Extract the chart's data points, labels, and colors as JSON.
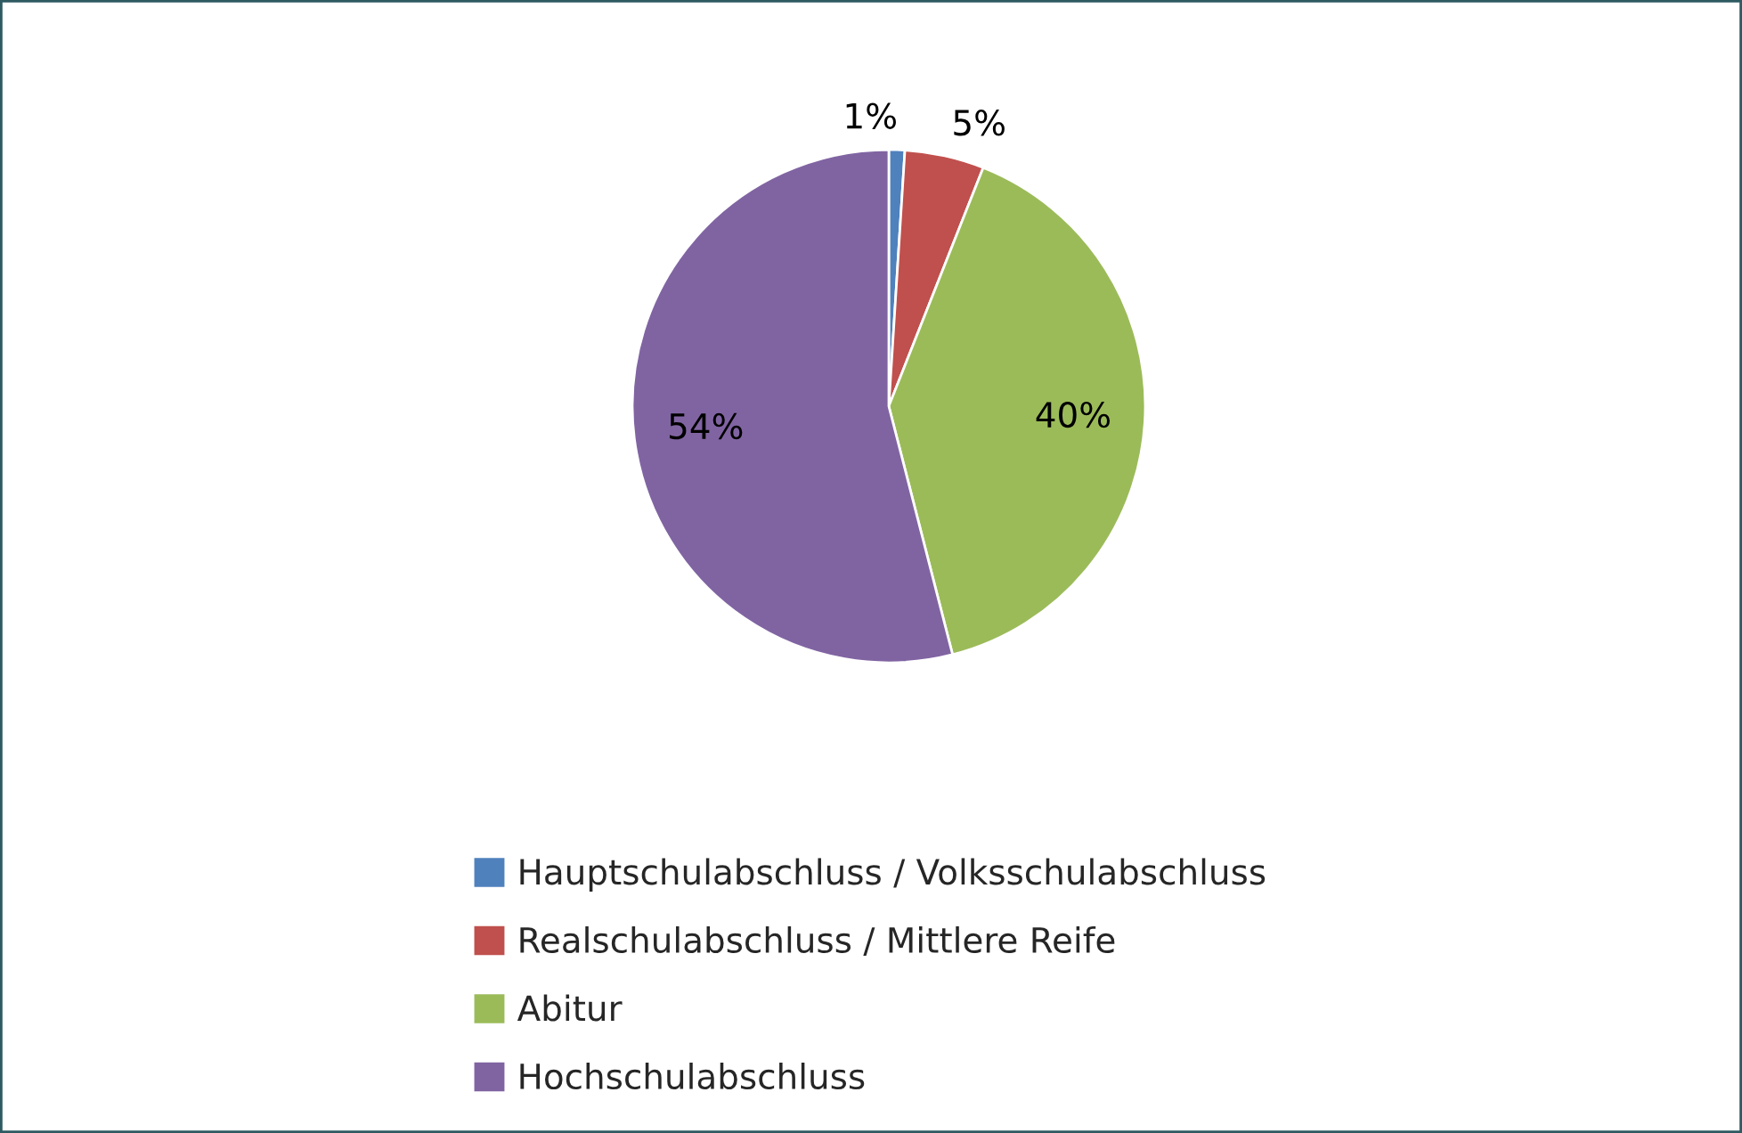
{
  "chart_data": {
    "type": "pie",
    "categories": [
      "Hauptschulabschluss / Volksschulabschluss",
      "Realschulabschluss / Mittlere Reife",
      "Abitur",
      "Hochschulabschluss"
    ],
    "values": [
      1,
      5,
      40,
      54
    ],
    "colors": [
      "#4f81bd",
      "#c0504d",
      "#9bbb59",
      "#8064a2"
    ],
    "value_labels": [
      "1%",
      "5%",
      "40%",
      "54%"
    ],
    "legend": "bottom"
  }
}
